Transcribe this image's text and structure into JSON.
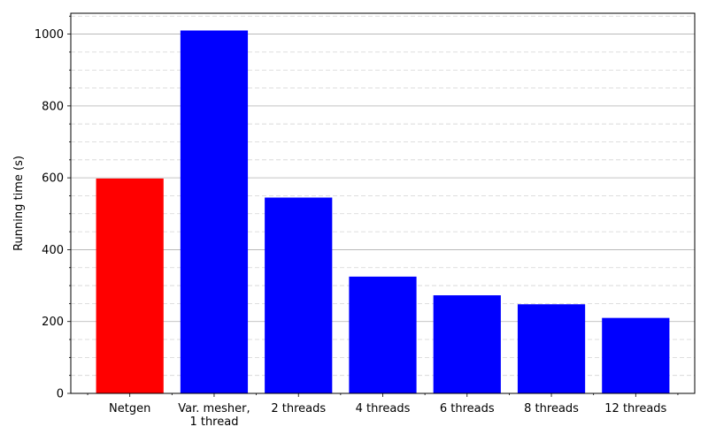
{
  "chart_data": {
    "type": "bar",
    "categories": [
      "Netgen",
      "Var. mesher,\n1 thread",
      "2 threads",
      "4 threads",
      "6 threads",
      "8 threads",
      "12 threads"
    ],
    "values": [
      598,
      1010,
      545,
      325,
      273,
      248,
      210
    ],
    "colors": [
      "#ff0000",
      "#0000ff",
      "#0000ff",
      "#0000ff",
      "#0000ff",
      "#0000ff",
      "#0000ff"
    ],
    "title": "",
    "xlabel": "",
    "ylabel": "Running time (s)",
    "ylim": [
      0,
      1058
    ],
    "y_major_ticks": [
      0,
      200,
      400,
      600,
      800,
      1000
    ],
    "y_minor_step": 50,
    "grid": "major solid, minor dashed (y only)"
  }
}
